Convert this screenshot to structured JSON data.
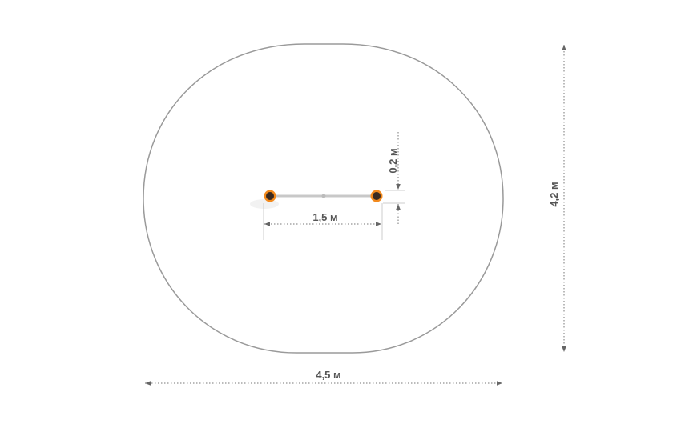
{
  "dimensions": {
    "width_label": "4,5 м",
    "height_label": "4,2 м",
    "bar_length_label": "1,5 м",
    "bar_offset_label": "0,2 м"
  },
  "colors": {
    "outline": "#9a9a9a",
    "post_ring": "#f28a1e",
    "post_core": "#3a2a20",
    "bar": "#c8c8c8"
  }
}
